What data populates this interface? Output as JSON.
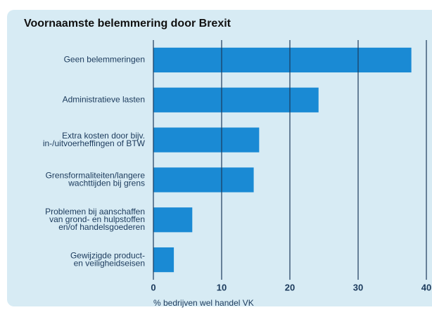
{
  "chart_data": {
    "type": "barh",
    "title": "Voornaamste belemmering door Brexit",
    "categories": [
      [
        "Geen belemmeringen"
      ],
      [
        "Administratieve lasten"
      ],
      [
        "Extra kosten door bijv.",
        "in-/uitvoerheffingen of BTW"
      ],
      [
        "Grensformaliteiten/langere",
        "wachttijden bij grens"
      ],
      [
        "Problemen bij aanschaffen",
        "van grond- en hulpstoffen",
        "en/of handelsgoederen"
      ],
      [
        "Gewijzigde product-",
        "en veiligheidseisen"
      ]
    ],
    "values": [
      37.8,
      24.2,
      15.5,
      14.7,
      5.7,
      3.0
    ],
    "color": "#1a8ad4",
    "xlabel": "% bedrijven wel handel VK",
    "xlim": [
      0,
      40
    ],
    "xticks": [
      0,
      10,
      20,
      30,
      40
    ],
    "grid": true
  }
}
